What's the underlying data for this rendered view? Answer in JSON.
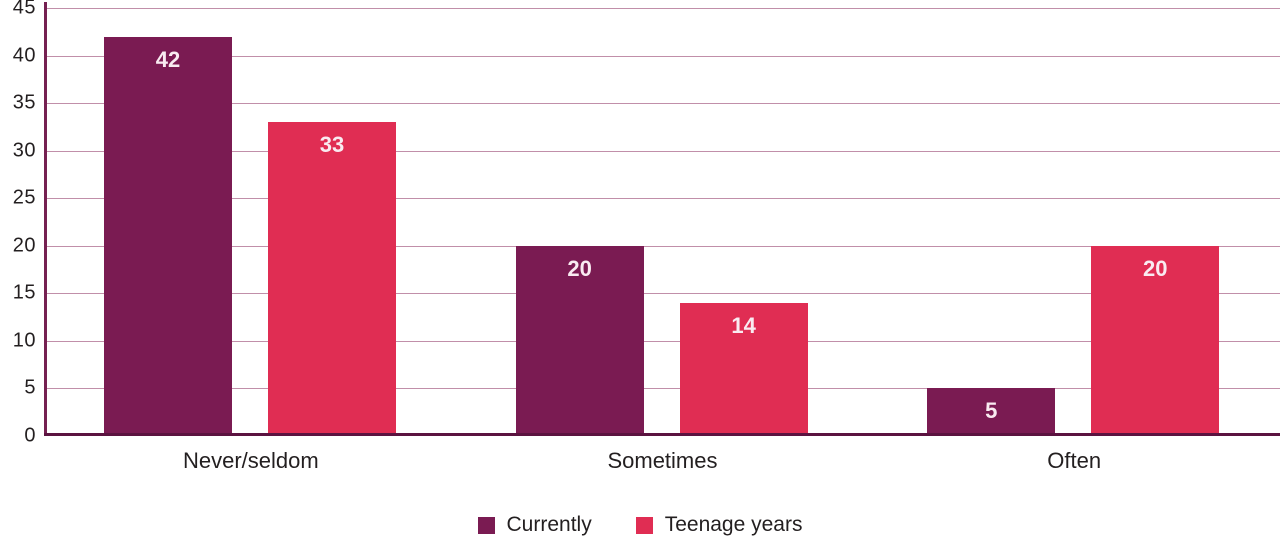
{
  "chart_data": {
    "type": "bar",
    "title": "",
    "xlabel": "",
    "ylabel": "",
    "categories": [
      "Never/seldom",
      "Sometimes",
      "Often"
    ],
    "series": [
      {
        "name": "Currently",
        "color": "#7a1b52",
        "values": [
          42,
          20,
          5
        ]
      },
      {
        "name": "Teenage years",
        "color": "#e02d53",
        "values": [
          33,
          14,
          20
        ]
      }
    ],
    "ylim": [
      0,
      45
    ],
    "yticks": [
      0,
      5,
      10,
      15,
      20,
      25,
      30,
      35,
      40,
      45
    ],
    "grid": true,
    "legend_position": "bottom",
    "bar_labels_shown": true,
    "colors": {
      "background": "#ffffff",
      "gridline": "#c18fa9",
      "axis_line": "#752051",
      "baseline": "#5b1340",
      "tick_text": "#231f20",
      "bar_label_text": "#f9ebf1"
    }
  }
}
